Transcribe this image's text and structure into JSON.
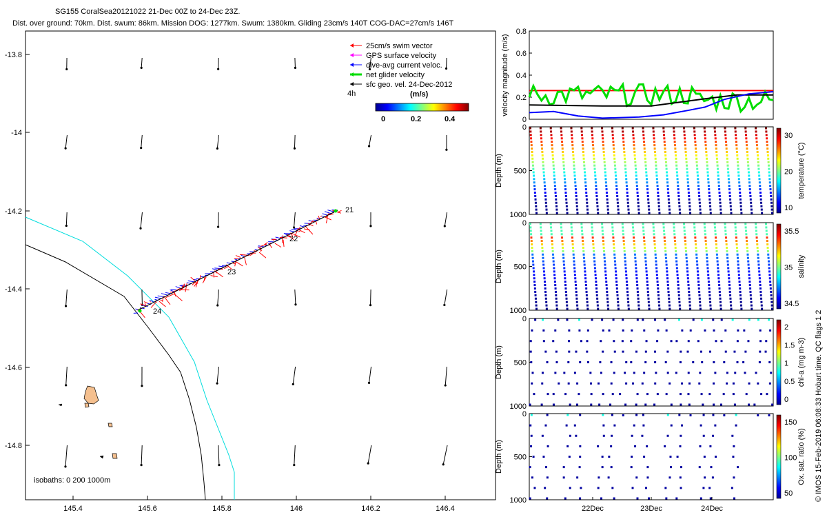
{
  "header": {
    "title_line1": "SG155 CoralSea20121022 21-Dec 00Z to 24-Dec 23Z.",
    "title_line2": "Dist. over ground: 70km. Dist. swum: 86km. Mission DOG: 1277km. Swum: 1380km. Gliding 23cm/s 140T COG-DAC=27cm/s 146T"
  },
  "credit": "© IMOS 15-Feb-2019 06:08:33 Hobart time. QC flags 1  2",
  "map": {
    "xticks": [
      "145.4",
      "145.6",
      "145.8",
      "146",
      "146.2",
      "146.4"
    ],
    "yticks": [
      "-13.8",
      "-14",
      "-14.2",
      "-14.4",
      "-14.6",
      "-14.8"
    ],
    "legend": [
      "25cm/s swim vector",
      "GPS surface velocity",
      "dive-avg current veloc.",
      "net glider velocity",
      "sfc geo. vel. 24-Dec-2012"
    ],
    "legend_colors": [
      "#ff0000",
      "#ff00ff",
      "#0000ff",
      "#00dd00",
      "#000000"
    ],
    "legend_time": "4h",
    "colorbar_unit": "(m/s)",
    "colorbar_ticks": [
      "0",
      "0.2",
      "0.4"
    ],
    "isobaths": "isobaths: 0    200   1000m",
    "day_labels": [
      "21",
      "22",
      "23",
      "24"
    ]
  },
  "chart_data": [
    {
      "type": "line",
      "ylabel": "velocity magnitude (m/s)",
      "ylim": [
        0,
        0.8
      ],
      "yticks": [
        "0",
        "0.2",
        "0.4",
        "0.6",
        "0.8"
      ],
      "series_colors": [
        "#ff0000",
        "#00dd00",
        "#000000",
        "#0000ff"
      ]
    },
    {
      "type": "scatter",
      "ylabel": "Depth (m)",
      "ylim": [
        1000,
        0
      ],
      "yticks": [
        "0",
        "500",
        "1000"
      ],
      "colorbar_label": "temperature (°C)",
      "colorbar_ticks": [
        "10",
        "20",
        "30"
      ]
    },
    {
      "type": "scatter",
      "ylabel": "Depth (m)",
      "ylim": [
        1000,
        0
      ],
      "yticks": [
        "0",
        "500",
        "1000"
      ],
      "colorbar_label": "salinity",
      "colorbar_ticks": [
        "34.5",
        "35",
        "35.5"
      ]
    },
    {
      "type": "scatter",
      "ylabel": "Depth (m)",
      "ylim": [
        1000,
        0
      ],
      "yticks": [
        "0",
        "500",
        "1000"
      ],
      "colorbar_label": "chl-a (mg m-3)",
      "colorbar_ticks": [
        "0",
        "0.5",
        "1",
        "1.5",
        "2"
      ]
    },
    {
      "type": "scatter",
      "ylabel": "Depth (m)",
      "ylim": [
        1000,
        0
      ],
      "yticks": [
        "0",
        "500",
        "1000"
      ],
      "xticks": [
        "22Dec",
        "23Dec",
        "24Dec"
      ],
      "colorbar_label": "Ox. sat. ratio (%)",
      "colorbar_ticks": [
        "50",
        "100",
        "150"
      ]
    }
  ]
}
